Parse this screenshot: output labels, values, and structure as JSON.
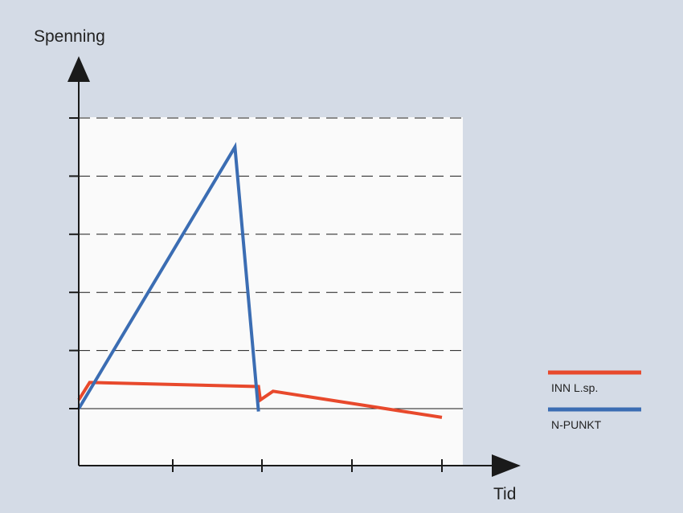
{
  "chart_data": {
    "type": "line",
    "title": "",
    "xlabel": "Tid",
    "ylabel": "Spenning",
    "x_ticks_count": 5,
    "y_gridlines": 5,
    "grid": "horizontal-dashed",
    "legend_placement": "right",
    "xlim": [
      0,
      10
    ],
    "ylim": [
      -1,
      5
    ],
    "series": [
      {
        "name": "INN L.sp.",
        "color": "#e8492c",
        "points": [
          [
            0,
            0.15
          ],
          [
            0.3,
            0.45
          ],
          [
            4.95,
            0.38
          ],
          [
            5.0,
            0.15
          ],
          [
            5.35,
            0.3
          ],
          [
            10,
            -0.15
          ]
        ]
      },
      {
        "name": "N-PUNKT",
        "color": "#3b6db3",
        "points": [
          [
            0,
            0
          ],
          [
            4.3,
            4.5
          ],
          [
            4.95,
            -0.05
          ]
        ]
      }
    ]
  },
  "colors": {
    "background": "#d4dbe6",
    "plot_area": "#fafafa",
    "axis": "#1a1a1a"
  }
}
